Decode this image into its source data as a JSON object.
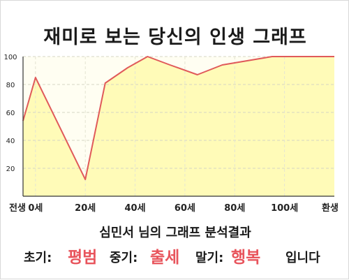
{
  "title": "재미로 보는 당신의 인생 그래프",
  "chart_data": {
    "type": "area",
    "x_tick_labels": [
      "전생",
      "0세",
      "20세",
      "40세",
      "60세",
      "80세",
      "100세",
      "환생"
    ],
    "y_ticks": [
      20,
      40,
      60,
      80,
      100
    ],
    "ylim": [
      0,
      100
    ],
    "xlim": [
      -5,
      120
    ],
    "grid": true,
    "line_color": "#e05a5a",
    "fill_color": "#fffbb8",
    "x": [
      -5,
      0,
      20,
      28,
      37,
      45,
      54,
      65,
      75,
      95,
      120
    ],
    "y": [
      54,
      85,
      12,
      81,
      92,
      100,
      94,
      87,
      94,
      100,
      100
    ]
  },
  "summary": {
    "text": "심민서 님의 그래프 분석결과"
  },
  "result": {
    "early_label": "초기:",
    "early_value": "평범",
    "mid_label": "중기:",
    "mid_value": "출세",
    "late_label": "말기:",
    "late_value": "행복",
    "suffix": "입니다"
  },
  "colors": {
    "highlight": "#e8545c"
  }
}
